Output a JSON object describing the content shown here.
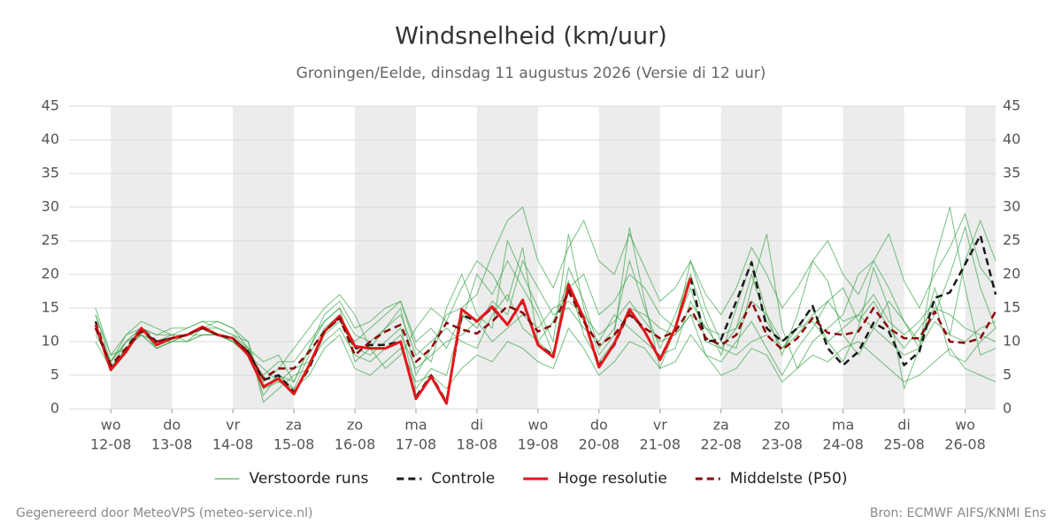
{
  "chart_data": {
    "type": "line",
    "title": "Windsnelheid (km/uur)",
    "subtitle": "Groningen/Eelde, dinsdag 11 augustus 2026 (Versie di 12 uur)",
    "categories": [
      null,
      [
        "wo",
        "12-08"
      ],
      null,
      null,
      null,
      [
        "do",
        "13-08"
      ],
      null,
      null,
      null,
      [
        "vr",
        "14-08"
      ],
      null,
      null,
      null,
      [
        "za",
        "15-08"
      ],
      null,
      null,
      null,
      [
        "zo",
        "16-08"
      ],
      null,
      null,
      null,
      [
        "ma",
        "17-08"
      ],
      null,
      null,
      null,
      [
        "di",
        "18-08"
      ],
      null,
      null,
      null,
      [
        "wo",
        "19-08"
      ],
      null,
      null,
      null,
      [
        "do",
        "20-08"
      ],
      null,
      null,
      null,
      [
        "vr",
        "21-08"
      ],
      null,
      null,
      null,
      [
        "za",
        "22-08"
      ],
      null,
      null,
      null,
      [
        "zo",
        "23-08"
      ],
      null,
      null,
      null,
      [
        "ma",
        "24-08"
      ],
      null,
      null,
      null,
      [
        "di",
        "25-08"
      ],
      null,
      null,
      null,
      [
        "wo",
        "26-08"
      ],
      null,
      null
    ],
    "ylim": [
      0,
      45
    ],
    "yticks": [
      0,
      5,
      10,
      15,
      20,
      25,
      30,
      35,
      40,
      45
    ],
    "grid": true,
    "day_shading": true,
    "ensemble": {
      "name": "Verstoorde runs",
      "color": "#2e9e3e",
      "members": [
        [
          14,
          7,
          10,
          12,
          10,
          11,
          11,
          12,
          12,
          11,
          9,
          2,
          5,
          3,
          8,
          12,
          14,
          9,
          8,
          10,
          12,
          3,
          6,
          5,
          13,
          20,
          17,
          22,
          18,
          14,
          8,
          21,
          16,
          9,
          12,
          22,
          15,
          9,
          14,
          20,
          13,
          8,
          15,
          22,
          14,
          10,
          12,
          15,
          10,
          7,
          12,
          21,
          15,
          3,
          9,
          18,
          11,
          22,
          28,
          22
        ],
        [
          12,
          6,
          9,
          11,
          9,
          10,
          10,
          11,
          11,
          10,
          8,
          5,
          7,
          7,
          10,
          13,
          15,
          7,
          9,
          12,
          14,
          8,
          10,
          12,
          10,
          9,
          14,
          17,
          12,
          10,
          13,
          19,
          11,
          7,
          10,
          15,
          14,
          12,
          11,
          14,
          8,
          7,
          10,
          13,
          9,
          5,
          9,
          12,
          16,
          13,
          14,
          17,
          13,
          11,
          13,
          16,
          8,
          7,
          10,
          12
        ],
        [
          15,
          8,
          9,
          12,
          11,
          11,
          12,
          13,
          12,
          11,
          10,
          1,
          3,
          5,
          6,
          11,
          13,
          10,
          12,
          14,
          16,
          9,
          7,
          15,
          20,
          14,
          12,
          25,
          20,
          15,
          10,
          26,
          15,
          8,
          11,
          27,
          16,
          6,
          12,
          22,
          15,
          10,
          9,
          18,
          26,
          12,
          6,
          10,
          12,
          14,
          20,
          22,
          18,
          13,
          10,
          14,
          20,
          27,
          18,
          12
        ],
        [
          11,
          7,
          11,
          13,
          12,
          11,
          10,
          12,
          13,
          12,
          9,
          7,
          8,
          4,
          9,
          14,
          16,
          12,
          13,
          15,
          16,
          10,
          12,
          9,
          14,
          12,
          16,
          14,
          22,
          18,
          14,
          15,
          12,
          10,
          14,
          12,
          10,
          8,
          9,
          16,
          12,
          11,
          12,
          20,
          13,
          9,
          11,
          14,
          16,
          18,
          13,
          16,
          12,
          9,
          12,
          15,
          14,
          12,
          11,
          10
        ],
        [
          13,
          6,
          10,
          11,
          10,
          10,
          11,
          11,
          11,
          10,
          9,
          4,
          6,
          9,
          12,
          15,
          17,
          14,
          9,
          6,
          8,
          12,
          15,
          13,
          18,
          22,
          20,
          16,
          24,
          10,
          8,
          18,
          20,
          14,
          16,
          20,
          18,
          14,
          12,
          18,
          10,
          9,
          12,
          16,
          14,
          8,
          14,
          22,
          19,
          11,
          8,
          12,
          16,
          13,
          9,
          22,
          30,
          18,
          8,
          9
        ],
        [
          12,
          7,
          10,
          12,
          9,
          10,
          11,
          12,
          11,
          10,
          8,
          6,
          4,
          6,
          7,
          10,
          12,
          8,
          7,
          9,
          11,
          6,
          8,
          10,
          11,
          13,
          10,
          12,
          14,
          12,
          15,
          16,
          14,
          11,
          13,
          16,
          13,
          10,
          11,
          14,
          12,
          9,
          8,
          10,
          11,
          9,
          12,
          13,
          10,
          12,
          14,
          12,
          10,
          8,
          9,
          13,
          11,
          10,
          12,
          13
        ],
        [
          14,
          8,
          11,
          12,
          11,
          12,
          12,
          13,
          13,
          12,
          10,
          3,
          5,
          4,
          9,
          13,
          15,
          11,
          10,
          12,
          15,
          5,
          9,
          14,
          15,
          17,
          23,
          28,
          30,
          22,
          18,
          24,
          28,
          22,
          20,
          26,
          21,
          16,
          18,
          22,
          17,
          14,
          18,
          24,
          20,
          15,
          18,
          22,
          25,
          20,
          17,
          22,
          26,
          19,
          15,
          20,
          24,
          29,
          21,
          18
        ],
        [
          10,
          6,
          9,
          11,
          9,
          10,
          10,
          11,
          11,
          10,
          8,
          3,
          4,
          3,
          5,
          9,
          11,
          6,
          5,
          7,
          9,
          4,
          5,
          3,
          6,
          8,
          7,
          10,
          9,
          7,
          6,
          12,
          9,
          5,
          7,
          10,
          9,
          6,
          7,
          11,
          8,
          5,
          6,
          9,
          8,
          4,
          6,
          8,
          7,
          9,
          10,
          8,
          6,
          4,
          5,
          7,
          9,
          6,
          5,
          4
        ]
      ]
    },
    "series": [
      {
        "name": "Controle",
        "color": "#1a1a1a",
        "dash": true,
        "values": [
          13,
          6,
          9,
          12,
          10,
          10.5,
          11,
          12,
          11,
          10.5,
          8.5,
          4.3,
          5,
          2.5,
          6,
          11.5,
          13.5,
          9,
          9.5,
          9.5,
          10,
          1.8,
          5,
          1,
          14,
          13,
          15,
          12.5,
          16,
          9.5,
          8,
          18,
          13.5,
          6.5,
          9.5,
          14.5,
          11.5,
          7.5,
          12,
          19.5,
          10,
          10.3,
          16,
          21.8,
          12,
          10,
          12,
          15.3,
          9,
          6.5,
          8.5,
          12.8,
          11.5,
          6.5,
          8.5,
          16.5,
          17.3,
          21.5,
          25.8,
          17
        ]
      },
      {
        "name": "Hoge resolutie",
        "color": "#e3171b",
        "dash": false,
        "values": [
          12.5,
          5.8,
          8.5,
          12,
          9.5,
          10.5,
          11,
          12.2,
          11,
          10.5,
          8,
          3.3,
          4.5,
          2.2,
          6.5,
          11.5,
          13.8,
          9.3,
          9,
          9,
          10,
          1.5,
          4.8,
          0.8,
          14.8,
          13,
          15.2,
          12.5,
          16.2,
          9.5,
          7.7,
          18.5,
          13.5,
          6.2,
          9.7,
          14.8,
          11.5,
          7.3,
          12,
          19.5,
          null,
          null,
          null,
          null,
          null,
          null,
          null,
          null,
          null,
          null,
          null,
          null,
          null,
          null,
          null,
          null,
          null,
          null,
          null,
          null
        ]
      },
      {
        "name": "Middelste (P50)",
        "color": "#8b0a0a",
        "dash": true,
        "values": [
          12,
          6.5,
          9,
          11.5,
          10,
          10.5,
          11,
          12,
          11,
          10.5,
          8.5,
          4.5,
          6,
          6,
          8.5,
          11.5,
          13.5,
          8,
          10,
          11.5,
          12.5,
          7,
          9,
          12.8,
          11.8,
          11.2,
          13,
          15.3,
          14.3,
          11.5,
          12.5,
          17.5,
          13,
          9.5,
          11,
          14,
          12,
          10.5,
          11.5,
          15,
          10.5,
          9.5,
          11,
          16,
          11,
          8.8,
          10.5,
          13.5,
          11.3,
          11,
          11.5,
          15,
          12,
          10.5,
          10.5,
          14.5,
          10,
          9.8,
          10.5,
          14.5
        ]
      }
    ]
  },
  "footer": {
    "left": "Gegenereerd door MeteoVPS (meteo-service.nl)",
    "right": "Bron: ECMWF AIFS/KNMI Ens"
  }
}
